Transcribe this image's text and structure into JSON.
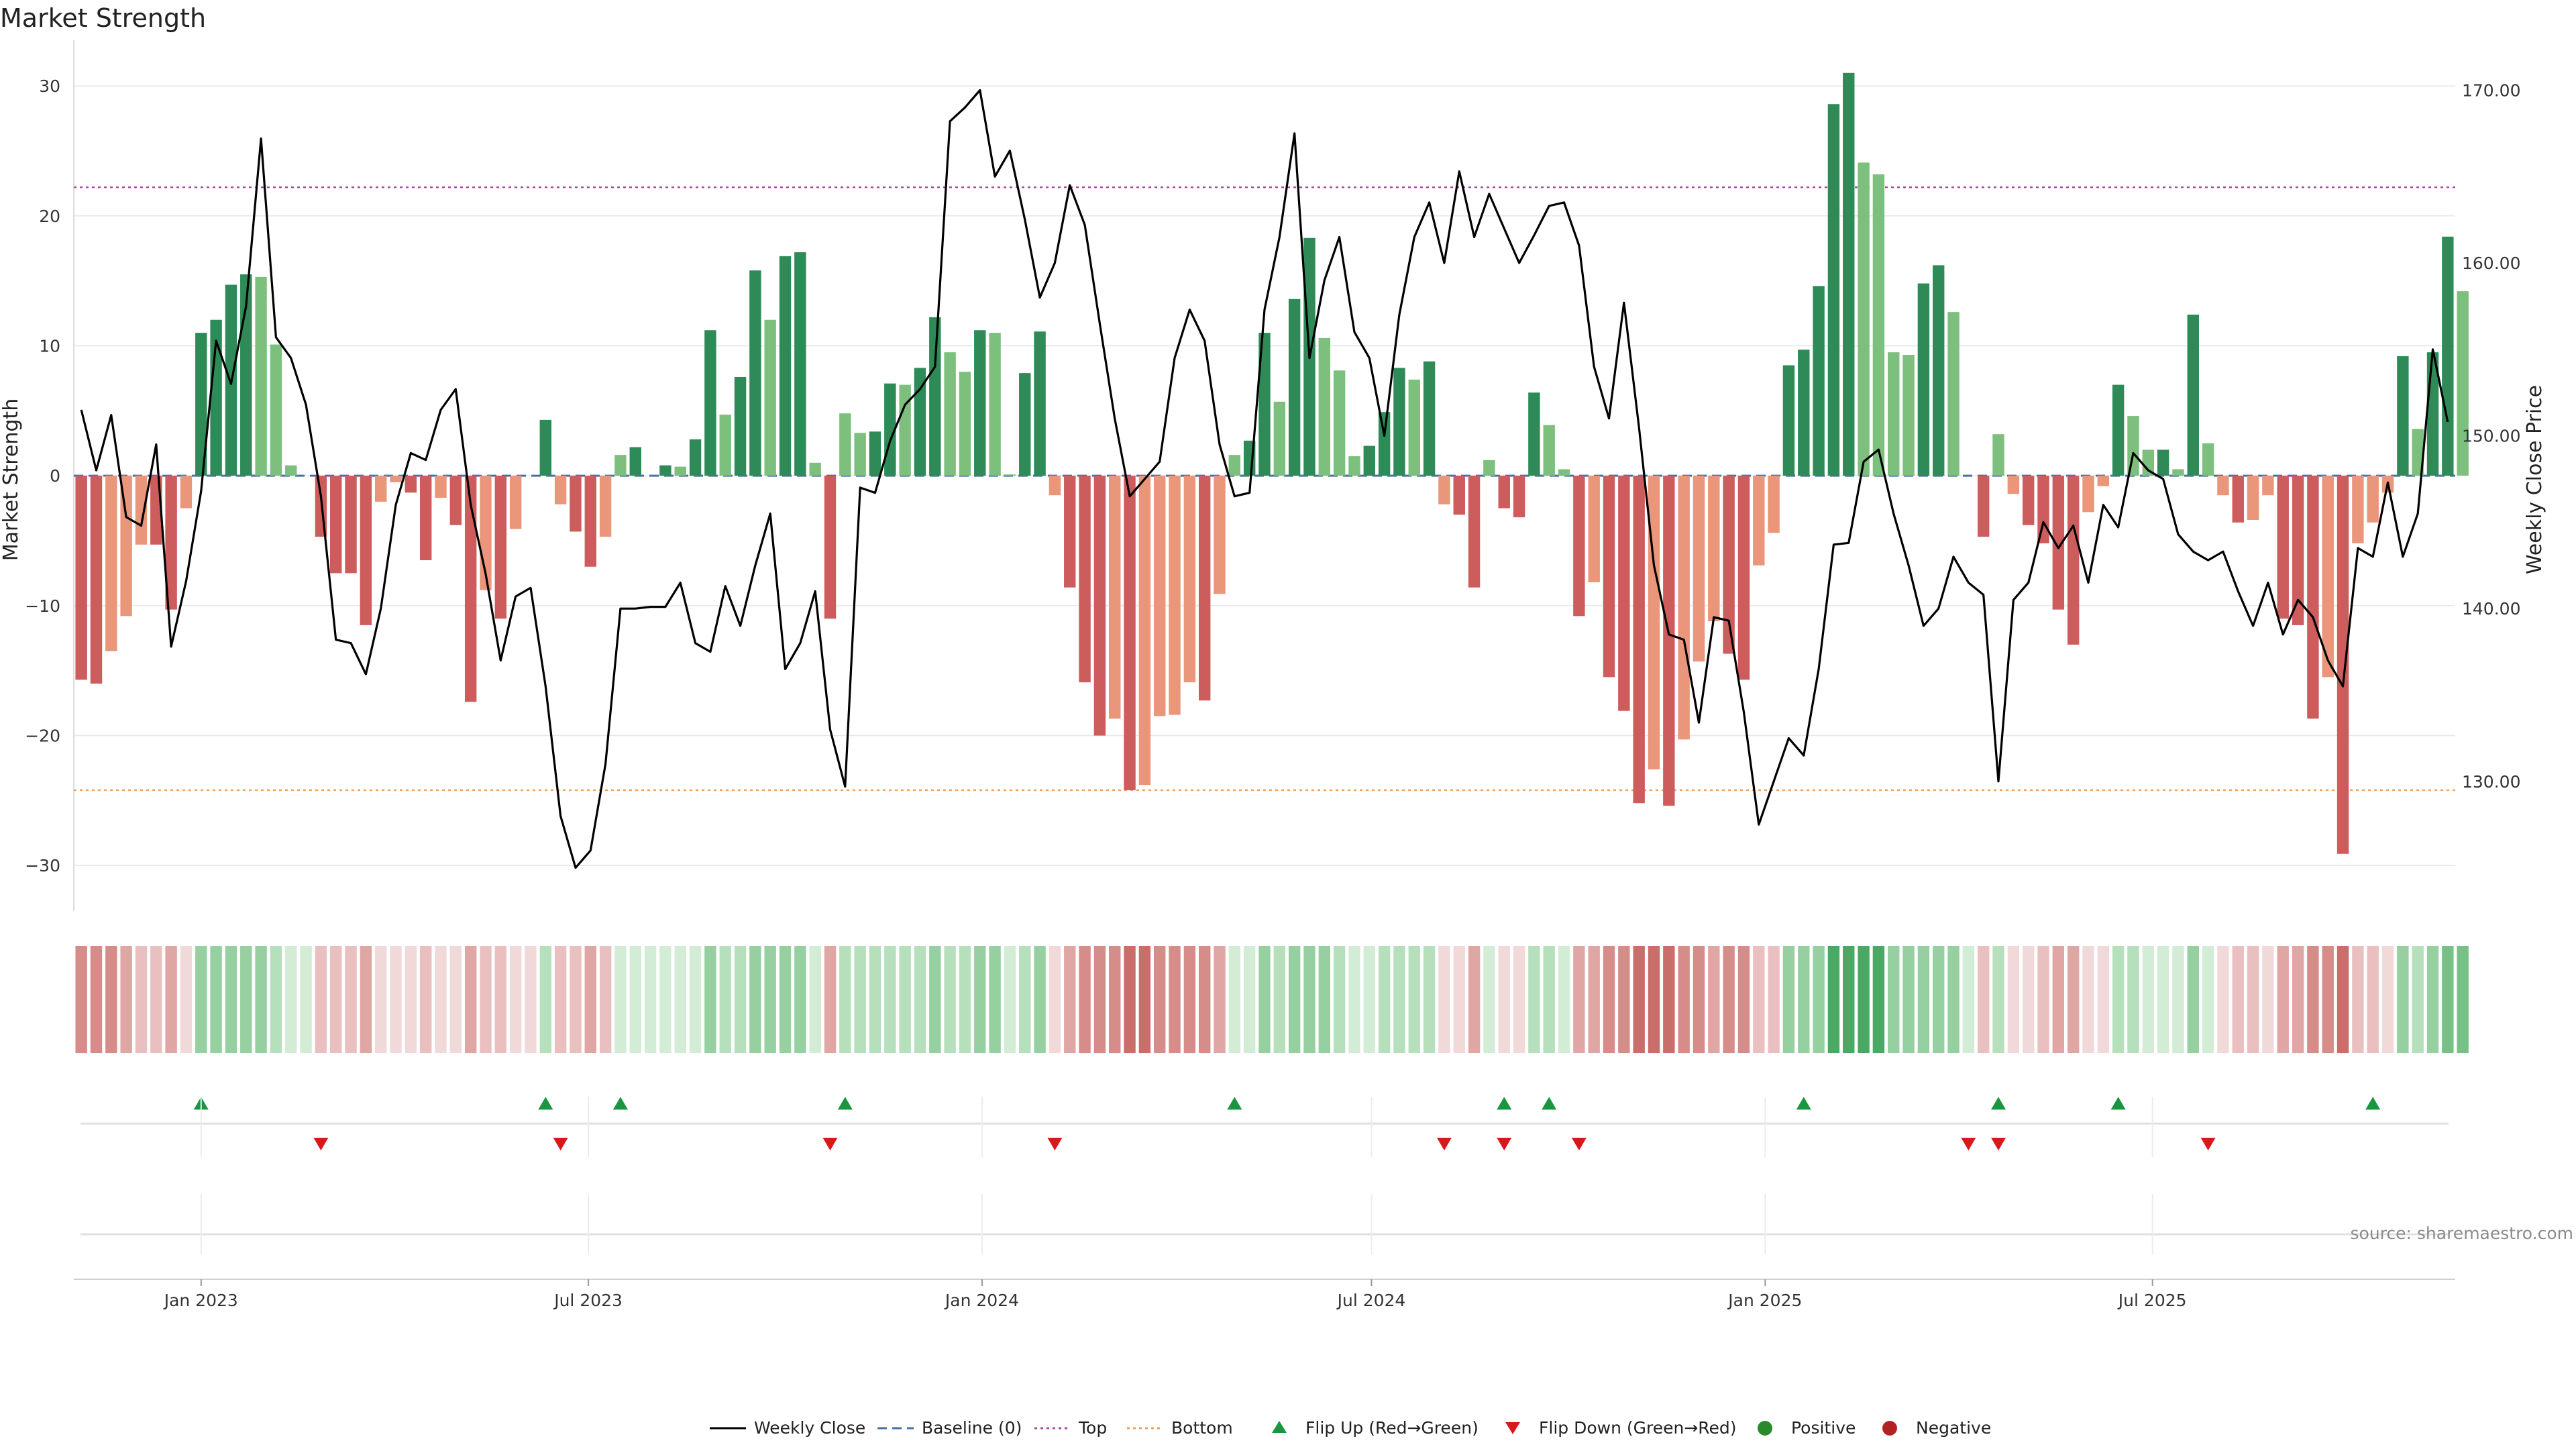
{
  "chart_data": {
    "type": "bar",
    "title": "Market Strength",
    "ylabel": "Market Strength",
    "y2label": "Weekly Close Price",
    "ylim": [
      -33.5,
      33
    ],
    "y2lim": [
      122.5,
      172.5
    ],
    "yticks": [
      30,
      20,
      10,
      0,
      -10,
      -20,
      -30
    ],
    "ytick_labels": [
      "30",
      "20",
      "10",
      "0",
      "−10",
      "−20",
      "−30"
    ],
    "y2ticks": [
      170,
      160,
      150,
      140,
      130
    ],
    "y2tick_labels": [
      "170.00",
      "160.00",
      "150.00",
      "140.00",
      "130.00"
    ],
    "top_line": 22.2,
    "bottom_line": -24.2,
    "first_week": "2022-11-06",
    "week_count": 159,
    "x_ticks": [
      {
        "label": "Jan 2023",
        "date": "2023-01-01"
      },
      {
        "label": "Jul 2023",
        "date": "2023-07-01"
      },
      {
        "label": "Jan 2024",
        "date": "2024-01-01"
      },
      {
        "label": "Jul 2024",
        "date": "2024-07-01"
      },
      {
        "label": "Jan 2025",
        "date": "2025-01-01"
      },
      {
        "label": "Jul 2025",
        "date": "2025-07-01"
      }
    ],
    "strength": [
      -15.7,
      -16.0,
      -13.5,
      -10.8,
      -5.3,
      -5.3,
      -10.3,
      -2.5,
      11.0,
      12.0,
      14.7,
      15.5,
      15.3,
      10.1,
      0.8,
      0,
      -4.7,
      -7.5,
      -7.5,
      -11.5,
      -2.0,
      -0.5,
      -1.3,
      -6.5,
      -1.7,
      -3.8,
      -17.4,
      -8.8,
      -11.0,
      -4.1,
      0,
      4.3,
      -2.2,
      -4.3,
      -7.0,
      -4.7,
      1.6,
      2.2,
      0,
      0.8,
      0.7,
      2.8,
      11.2,
      4.7,
      7.6,
      15.8,
      12.0,
      16.9,
      17.2,
      1.0,
      -11.0,
      4.8,
      3.3,
      3.4,
      7.1,
      7.0,
      8.3,
      12.2,
      9.5,
      8.0,
      11.2,
      11.0,
      0.1,
      7.9,
      11.1,
      -1.5,
      -8.6,
      -15.9,
      -20.0,
      -18.7,
      -24.2,
      -23.8,
      -18.5,
      -18.4,
      -15.9,
      -17.3,
      -9.1,
      1.6,
      2.7,
      11.0,
      5.7,
      13.6,
      18.3,
      10.6,
      8.1,
      1.5,
      2.3,
      4.9,
      8.3,
      7.4,
      8.8,
      -2.2,
      -3.0,
      -8.6,
      1.2,
      -2.5,
      -3.2,
      6.4,
      3.9,
      0.5,
      -10.8,
      -8.2,
      -15.5,
      -18.1,
      -25.2,
      -22.6,
      -25.4,
      -20.3,
      -14.3,
      -11.2,
      -13.7,
      -15.7,
      -6.9,
      -4.4,
      8.5,
      9.7,
      14.6,
      28.6,
      31.0,
      24.1,
      23.2,
      9.5,
      9.3,
      14.8,
      16.2,
      12.6,
      0,
      -4.7,
      3.2,
      -1.4,
      -3.8,
      -5.2,
      -10.3,
      -13.0,
      -2.8,
      -0.8,
      7.0,
      4.6,
      2.0,
      2.0,
      0.5,
      12.4,
      2.5,
      -1.5,
      -3.6,
      -3.4,
      -1.5,
      -11.0,
      -11.5,
      -18.7,
      -15.5,
      -29.1,
      -5.2,
      -3.6,
      -1.3,
      9.2,
      3.6,
      9.5,
      18.4,
      14.2
    ],
    "weekly_close": [
      151.5,
      148.0,
      151.2,
      145.3,
      144.8,
      149.5,
      137.8,
      141.6,
      146.8,
      155.5,
      153.0,
      157.5,
      167.2,
      155.7,
      154.5,
      151.8,
      146.5,
      138.2,
      138.0,
      136.2,
      140.0,
      146.0,
      149.0,
      148.6,
      151.5,
      152.7,
      146.0,
      142.0,
      137.0,
      140.7,
      141.2,
      135.5,
      128.0,
      125.0,
      126.0,
      131.0,
      140.0,
      140.0,
      140.1,
      140.1,
      141.5,
      138.0,
      137.5,
      141.3,
      139.0,
      142.5,
      145.5,
      136.5,
      138.0,
      141.0,
      133.0,
      129.7,
      147.0,
      146.7,
      149.7,
      151.8,
      152.7,
      154.0,
      168.2,
      169.0,
      170.0,
      165.0,
      166.5,
      162.5,
      158.0,
      160.0,
      164.5,
      162.2,
      156.5,
      151.0,
      146.5,
      147.5,
      148.5,
      154.5,
      157.3,
      155.5,
      149.5,
      146.5,
      146.7,
      157.3,
      161.5,
      167.5,
      154.5,
      159.0,
      161.5,
      156.0,
      154.5,
      150.0,
      157.0,
      161.5,
      163.5,
      160.0,
      165.3,
      161.5,
      164.0,
      162.0,
      160.0,
      161.6,
      163.3,
      163.5,
      161.0,
      154.0,
      151.0,
      157.7,
      150.5,
      142.5,
      138.5,
      138.2,
      133.4,
      139.5,
      139.3,
      134.0,
      127.5,
      130.0,
      132.5,
      131.5,
      136.5,
      143.7,
      143.8,
      148.5,
      149.2,
      145.5,
      142.5,
      139.0,
      140.0,
      143.0,
      141.5,
      140.8,
      130.0,
      140.5,
      141.5,
      145.0,
      143.5,
      144.8,
      141.5,
      146.0,
      144.7,
      149.0,
      148.0,
      147.5,
      144.3,
      143.3,
      142.8,
      143.3,
      141.0,
      139.0,
      141.5,
      138.5,
      140.5,
      139.5,
      137.0,
      135.5,
      143.5,
      143.0,
      147.3,
      143.0,
      145.5,
      155.0,
      150.8
    ],
    "shade_values": [
      -4,
      -4,
      -4,
      -3,
      -2,
      -2,
      -3,
      -1,
      3,
      3,
      3,
      3,
      3,
      2,
      1,
      1,
      -2,
      -2,
      -2,
      -3,
      -1,
      -1,
      -1,
      -2,
      -1,
      -1,
      -3,
      -2,
      -2,
      -1,
      -1,
      2,
      -2,
      -2,
      -3,
      -2,
      1,
      1,
      1,
      1,
      1,
      1,
      3,
      2,
      2,
      3,
      3,
      3,
      3,
      1,
      -3,
      2,
      2,
      2,
      2,
      2,
      2,
      3,
      2,
      2,
      3,
      3,
      1,
      2,
      3,
      -1,
      -3,
      -4,
      -4,
      -4,
      -5,
      -5,
      -4,
      -4,
      -4,
      -4,
      -3,
      1,
      1,
      3,
      2,
      3,
      3,
      3,
      2,
      1,
      1,
      2,
      2,
      2,
      2,
      -1,
      -1,
      -3,
      1,
      -1,
      -1,
      2,
      2,
      1,
      -3,
      -3,
      -4,
      -4,
      -5,
      -5,
      -5,
      -4,
      -4,
      -3,
      -4,
      -4,
      -2,
      -2,
      3,
      3,
      3,
      5,
      5,
      5,
      5,
      3,
      3,
      3,
      3,
      3,
      1,
      -2,
      2,
      -1,
      -1,
      -2,
      -3,
      -3,
      -1,
      -1,
      2,
      2,
      1,
      1,
      1,
      3,
      1,
      -1,
      -2,
      -2,
      -1,
      -3,
      -3,
      -4,
      -4,
      -5,
      -2,
      -2,
      -1,
      3,
      2,
      3,
      4,
      4
    ],
    "flips_up_week": [
      8,
      31,
      36,
      51,
      77,
      95,
      98,
      115,
      128,
      136,
      153
    ],
    "flips_down_week": [
      16,
      32,
      50,
      65,
      91,
      95,
      100,
      126,
      128,
      142
    ],
    "legend": [
      {
        "label": "Weekly Close",
        "kind": "line",
        "color": "#000000"
      },
      {
        "label": "Baseline (0)",
        "kind": "dash",
        "color": "#4a6fa5"
      },
      {
        "label": "Top",
        "kind": "dot",
        "color": "#a64ca6"
      },
      {
        "label": "Bottom",
        "kind": "dot",
        "color": "#f2a05a"
      },
      {
        "label": "Flip Up (Red→Green)",
        "kind": "tri-up",
        "color": "#1a9641"
      },
      {
        "label": "Flip Down (Green→Red)",
        "kind": "tri-down",
        "color": "#d7191c"
      },
      {
        "label": "Positive",
        "kind": "dot-marker",
        "color": "#2a8a2a"
      },
      {
        "label": "Negative",
        "kind": "dot-marker",
        "color": "#b22222"
      }
    ],
    "colors": {
      "pos_dark": "#2e8b57",
      "pos_light": "#7dc07d",
      "neg_dark": "#cd5c5c",
      "neg_light": "#e9967a",
      "line": "#000000",
      "baseline": "#4a6fa5",
      "top": "#a64ca6",
      "bottom": "#f2a05a",
      "flip_up": "#1a9641",
      "flip_down": "#d7191c"
    }
  },
  "source": "source: sharemaestro.com"
}
